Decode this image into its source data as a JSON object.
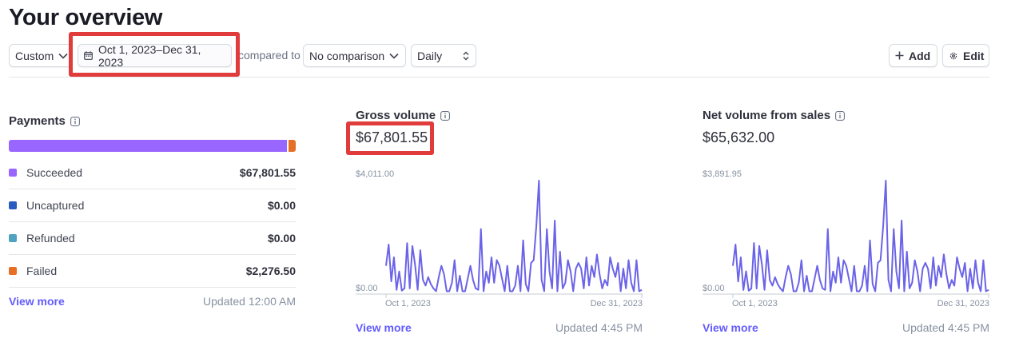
{
  "page": {
    "title": "Your overview"
  },
  "toolbar": {
    "range_preset": "Custom",
    "date_range": "Oct 1, 2023–Dec 31, 2023",
    "compared_to_label": "compared to",
    "comparison": "No comparison",
    "interval": "Daily",
    "add_label": "Add",
    "edit_label": "Edit"
  },
  "payments": {
    "title": "Payments",
    "items": [
      {
        "label": "Succeeded",
        "value": "$67,801.55",
        "color": "#9966ff"
      },
      {
        "label": "Uncaptured",
        "value": "$0.00",
        "color": "#2b5bbf"
      },
      {
        "label": "Refunded",
        "value": "$0.00",
        "color": "#4fa3c0"
      },
      {
        "label": "Failed",
        "value": "$2,276.50",
        "color": "#e56f24"
      }
    ],
    "bar_shares": [
      0.968,
      0.032
    ],
    "view_more": "View more",
    "updated": "Updated 12:00 AM"
  },
  "gross": {
    "title": "Gross volume",
    "value": "$67,801.55",
    "view_more": "View more",
    "updated": "Updated 4:45 PM",
    "chart_data": {
      "type": "line",
      "x_start_label": "Oct 1, 2023",
      "x_end_label": "Dec 31, 2023",
      "y_max_label": "$4,011.00",
      "y_min_label": "$0.00",
      "ylim": [
        0,
        4011
      ],
      "color": "#6b63e8",
      "values": [
        1000,
        1750,
        450,
        1300,
        150,
        800,
        120,
        200,
        1800,
        200,
        1700,
        1050,
        150,
        1550,
        500,
        300,
        600,
        350,
        200,
        100,
        600,
        1000,
        700,
        100,
        100,
        400,
        1200,
        100,
        650,
        100,
        100,
        550,
        1000,
        500,
        200,
        150,
        2300,
        100,
        800,
        400,
        1300,
        400,
        1200,
        1000,
        550,
        100,
        1000,
        100,
        100,
        300,
        1000,
        100,
        1900,
        350,
        100,
        1100,
        1200,
        2400,
        4011,
        500,
        100,
        2300,
        800,
        200,
        2600,
        100,
        1500,
        200,
        400,
        1200,
        800,
        100,
        900,
        1100,
        900,
        200,
        1300,
        300,
        1000,
        600,
        1400,
        700,
        200,
        500,
        300,
        1300,
        900,
        600,
        1100,
        100,
        900,
        200,
        1200,
        400,
        100,
        1200,
        100,
        150
      ]
    }
  },
  "net": {
    "title": "Net volume from sales",
    "value": "$65,632.00",
    "view_more": "View more",
    "updated": "Updated 4:45 PM",
    "chart_data": {
      "type": "line",
      "x_start_label": "Oct 1, 2023",
      "x_end_label": "Dec 31, 2023",
      "y_max_label": "$3,891.95",
      "y_min_label": "$0.00",
      "ylim": [
        0,
        3891.95
      ],
      "color": "#6b63e8",
      "values": [
        970,
        1700,
        430,
        1260,
        140,
        780,
        115,
        190,
        1750,
        190,
        1650,
        1020,
        145,
        1500,
        480,
        290,
        580,
        340,
        195,
        95,
        580,
        970,
        680,
        95,
        95,
        390,
        1160,
        95,
        630,
        95,
        95,
        530,
        970,
        485,
        195,
        145,
        2230,
        95,
        775,
        390,
        1260,
        390,
        1160,
        970,
        530,
        95,
        970,
        95,
        95,
        290,
        970,
        95,
        1840,
        340,
        95,
        1070,
        1160,
        2330,
        3891.95,
        485,
        95,
        2230,
        775,
        195,
        2520,
        95,
        1455,
        195,
        390,
        1160,
        775,
        95,
        870,
        1070,
        870,
        195,
        1260,
        290,
        970,
        580,
        1360,
        680,
        195,
        485,
        290,
        1260,
        870,
        580,
        1070,
        95,
        870,
        195,
        1160,
        390,
        95,
        1160,
        95,
        145
      ]
    }
  }
}
